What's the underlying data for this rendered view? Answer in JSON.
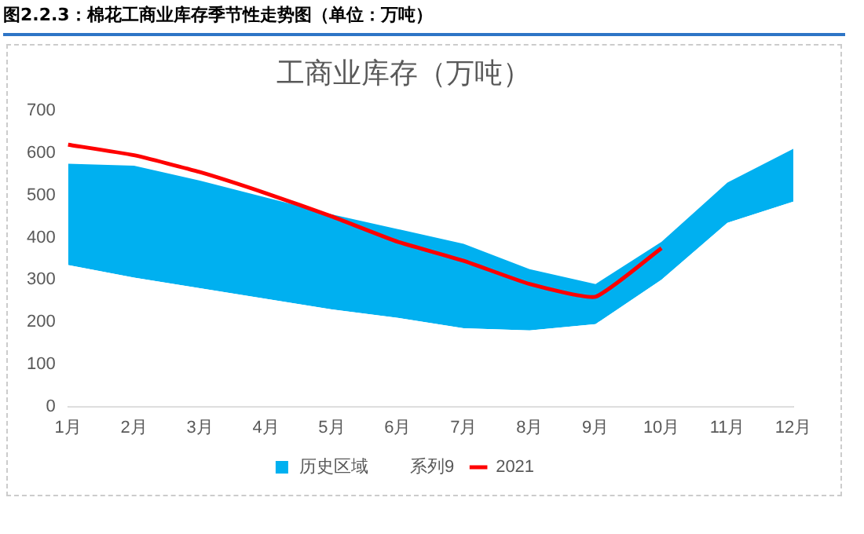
{
  "chart_data": {
    "type": "area",
    "title": "图2.2.3：棉花工商业库存季节性走势图（单位：万吨）",
    "subtitle": "工商业库存（万吨）",
    "categories": [
      "1月",
      "2月",
      "3月",
      "4月",
      "5月",
      "6月",
      "7月",
      "8月",
      "9月",
      "10月",
      "11月",
      "12月"
    ],
    "stacked": true,
    "series": [
      {
        "name": "系列9",
        "type": "area",
        "color": "#ffffff",
        "values": [
          335,
          305,
          280,
          255,
          230,
          210,
          185,
          180,
          195,
          300,
          435,
          485
        ]
      },
      {
        "name": "历史区域",
        "type": "area",
        "color": "#00b0f0",
        "values": [
          240,
          265,
          255,
          240,
          225,
          210,
          200,
          145,
          95,
          90,
          95,
          125
        ]
      },
      {
        "name": "2021",
        "type": "line",
        "color": "#ff0000",
        "values": [
          620,
          595,
          555,
          505,
          450,
          390,
          345,
          290,
          260,
          375,
          null,
          null
        ]
      }
    ],
    "ylim": [
      0,
      700
    ],
    "yticks": [
      0,
      100,
      200,
      300,
      400,
      500,
      600,
      700
    ],
    "grid": false,
    "legend": "bottom",
    "marker": "none",
    "line_style": "solid"
  }
}
